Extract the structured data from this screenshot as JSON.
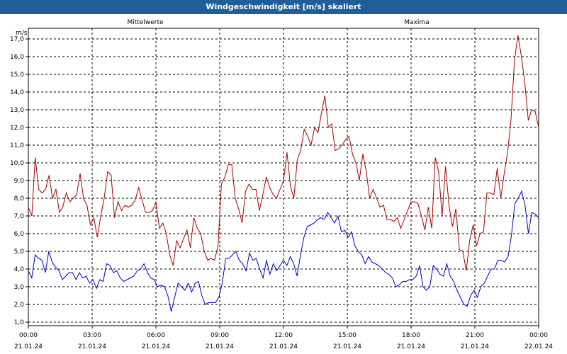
{
  "window": {
    "title": "Windgeschwindigkeit [m/s] skaliert"
  },
  "chart_data": {
    "type": "line",
    "title": "Windgeschwindigkeit [m/s] skaliert",
    "ylabel": "m/s",
    "xlabel": "",
    "ylim": [
      0.8,
      17.6
    ],
    "xlim": [
      0,
      24
    ],
    "y_ticks": [
      "1,0",
      "2,0",
      "3,0",
      "4,0",
      "5,0",
      "6,0",
      "7,0",
      "8,0",
      "9,0",
      "10,0",
      "11,0",
      "12,0",
      "13,0",
      "14,0",
      "15,0",
      "16,0",
      "17,0"
    ],
    "x_ticks": [
      {
        "time": "00:00",
        "date": "21.01.24"
      },
      {
        "time": "03:00",
        "date": "21.01.24"
      },
      {
        "time": "06:00",
        "date": "21.01.24"
      },
      {
        "time": "09:00",
        "date": "21.01.24"
      },
      {
        "time": "12:00",
        "date": "21.01.24"
      },
      {
        "time": "15:00",
        "date": "21.01.24"
      },
      {
        "time": "18:00",
        "date": "21.01.24"
      },
      {
        "time": "21:00",
        "date": "21.01.24"
      },
      {
        "time": "00:00",
        "date": "22.01.24"
      }
    ],
    "grid": true,
    "series": [
      {
        "name": "Mittelwerte",
        "color": "#0000cc",
        "values": [
          3.9,
          3.5,
          4.8,
          4.6,
          4.5,
          3.8,
          5.0,
          4.4,
          4.1,
          3.9,
          3.4,
          3.6,
          3.8,
          3.8,
          3.4,
          3.8,
          3.5,
          3.6,
          3.2,
          3.4,
          2.9,
          3.4,
          3.3,
          4.3,
          4.2,
          3.8,
          3.9,
          3.5,
          3.3,
          3.4,
          3.5,
          3.6,
          3.9,
          4.0,
          4.3,
          3.8,
          3.5,
          3.4,
          3.0,
          3.1,
          3.0,
          2.5,
          1.6,
          2.4,
          3.2,
          3.0,
          2.8,
          3.2,
          2.7,
          3.2,
          3.3,
          2.5,
          2.0,
          2.1,
          2.1,
          2.1,
          2.4,
          3.2,
          4.6,
          4.6,
          4.8,
          5.0,
          4.5,
          4.3,
          3.9,
          4.9,
          4.5,
          4.6,
          4.0,
          3.5,
          4.5,
          3.7,
          4.3,
          3.9,
          4.2,
          4.5,
          4.2,
          4.7,
          4.3,
          3.6,
          4.8,
          5.8,
          6.4,
          6.5,
          6.6,
          6.8,
          6.9,
          6.8,
          7.2,
          6.9,
          6.6,
          7.0,
          6.1,
          6.2,
          5.8,
          6.1,
          5.3,
          5.0,
          4.8,
          4.3,
          4.7,
          4.4,
          4.3,
          4.2,
          4.0,
          3.8,
          3.7,
          3.5,
          3.0,
          3.1,
          3.3,
          3.3,
          3.4,
          3.4,
          3.6,
          4.2,
          3.0,
          2.8,
          3.0,
          4.2,
          4.0,
          3.7,
          3.6,
          4.3,
          3.6,
          3.3,
          2.8,
          2.4,
          2.0,
          1.9,
          2.5,
          2.8,
          2.4,
          3.0,
          3.2,
          3.6,
          4.0,
          4.0,
          4.5,
          4.5,
          4.4,
          4.7,
          5.9,
          7.7,
          8.0,
          8.4,
          7.6,
          6.0,
          7.2,
          7.1,
          6.9
        ]
      },
      {
        "name": "Maxima",
        "color": "#aa0000",
        "values": [
          7.5,
          7.0,
          10.3,
          8.5,
          8.3,
          8.5,
          9.3,
          8.0,
          8.5,
          7.2,
          7.5,
          8.3,
          7.8,
          8.0,
          8.2,
          9.4,
          8.0,
          7.6,
          6.5,
          6.9,
          5.8,
          7.0,
          8.0,
          9.5,
          9.3,
          6.9,
          7.8,
          7.3,
          7.6,
          7.5,
          7.6,
          7.9,
          8.6,
          7.9,
          7.2,
          7.2,
          7.3,
          7.8,
          6.3,
          6.6,
          6.0,
          4.8,
          4.2,
          5.6,
          5.2,
          5.7,
          6.2,
          5.2,
          6.9,
          6.3,
          6.0,
          5.0,
          4.5,
          4.6,
          4.5,
          5.3,
          8.8,
          9.2,
          9.9,
          9.9,
          8.0,
          7.4,
          6.6,
          8.4,
          8.8,
          8.5,
          8.5,
          7.3,
          8.2,
          9.2,
          8.6,
          8.2,
          8.0,
          8.5,
          9.0,
          10.6,
          8.7,
          8.0,
          10.2,
          10.7,
          11.9,
          11.5,
          11.0,
          12.0,
          11.7,
          12.8,
          13.8,
          12.0,
          12.2,
          10.7,
          10.8,
          11.0,
          11.3,
          11.5,
          10.5,
          10.0,
          9.0,
          10.5,
          9.5,
          8.0,
          8.5,
          8.0,
          7.5,
          7.6,
          6.8,
          6.8,
          6.7,
          6.9,
          6.3,
          6.8,
          7.3,
          7.8,
          7.8,
          7.7,
          7.0,
          6.2,
          7.5,
          6.3,
          10.3,
          9.5,
          7.0,
          9.8,
          7.6,
          6.4,
          7.4,
          5.1,
          5.0,
          3.9,
          5.6,
          6.5,
          5.3,
          6.0,
          6.1,
          8.3,
          8.3,
          8.2,
          9.7,
          8.0,
          9.4,
          10.6,
          12.5,
          15.8,
          17.2,
          16.0,
          14.5,
          12.4,
          13.0,
          12.9,
          12.0
        ]
      }
    ]
  }
}
